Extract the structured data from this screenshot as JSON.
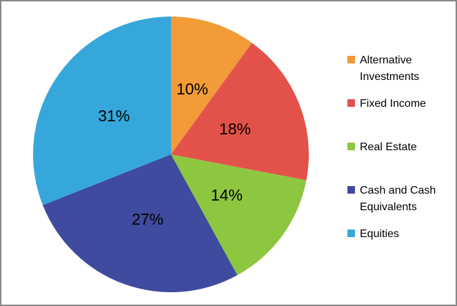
{
  "chart_data": {
    "type": "pie",
    "title": "",
    "legend_position": "right",
    "start_angle_deg": 0,
    "direction": "clockwise",
    "slices": [
      {
        "label": "Alternative Investments",
        "value": 10,
        "data_label": "10%",
        "color": "#F29B38"
      },
      {
        "label": "Fixed Income",
        "value": 18,
        "data_label": "18%",
        "color": "#E2524A"
      },
      {
        "label": "Real Estate",
        "value": 14,
        "data_label": "14%",
        "color": "#8DC63F"
      },
      {
        "label": "Cash and Cash Equivalents",
        "value": 27,
        "data_label": "27%",
        "color": "#3F4B9E"
      },
      {
        "label": "Equities",
        "value": 31,
        "data_label": "31%",
        "color": "#36A7DB"
      }
    ],
    "data_label_color": "#000000",
    "legend_text_color": "#000000"
  },
  "frame": {
    "border_color": "#878787",
    "background_color": "#FFFFFF"
  }
}
